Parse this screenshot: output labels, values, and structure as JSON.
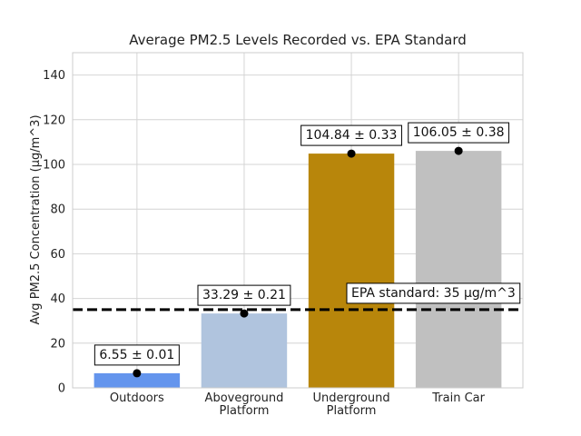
{
  "chart_data": {
    "type": "bar",
    "title": "Average PM2.5 Levels Recorded vs. EPA Standard",
    "xlabel": "",
    "ylabel": "Avg PM2.5 Concentration (μg/m^3)",
    "ylim": [
      0,
      150
    ],
    "yticks": [
      0,
      20,
      40,
      60,
      80,
      100,
      120,
      140
    ],
    "grid": true,
    "categories": [
      "Outdoors",
      "Aboveground\nPlatform",
      "Underground\nPlatform",
      "Train Car"
    ],
    "values": [
      6.55,
      33.29,
      104.84,
      106.05
    ],
    "errors": [
      0.01,
      0.21,
      0.33,
      0.38
    ],
    "bar_labels": [
      "6.55 ± 0.01",
      "33.29 ± 0.21",
      "104.84 ± 0.33",
      "106.05 ± 0.38"
    ],
    "colors": [
      "#6495ED",
      "#B0C4DE",
      "#B8860B",
      "#C0C0C0"
    ],
    "reference_line": {
      "value": 35,
      "label": "EPA standard: 35 μg/m^3",
      "color": "#000000",
      "style": "dashed"
    }
  }
}
